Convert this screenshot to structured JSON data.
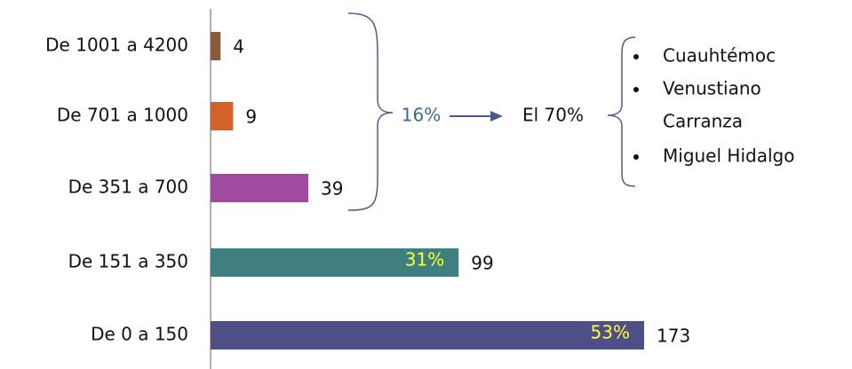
{
  "chart_data": {
    "type": "barh",
    "categories": [
      "De 1001 a 4200",
      "De 701 a 1000",
      "De 351 a 700",
      "De 151 a 350",
      "De 0 a 150"
    ],
    "values": [
      4,
      9,
      39,
      99,
      173
    ],
    "colors": [
      "#8b5a3c",
      "#d2622a",
      "#a04aa0",
      "#3f7f7f",
      "#4f4f88"
    ],
    "inner_labels": [
      null,
      null,
      null,
      "31%",
      "53%"
    ],
    "xlim": [
      0,
      173
    ],
    "annotations": {
      "group_share": "16%",
      "total_share": "El 70%",
      "items": [
        [
          "Cuauhtémoc"
        ],
        [
          "Venustiano",
          "Carranza"
        ],
        [
          "Miguel Hidalgo"
        ]
      ]
    }
  }
}
